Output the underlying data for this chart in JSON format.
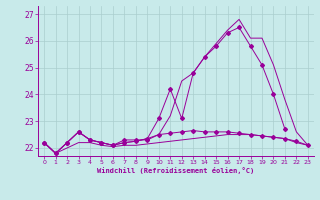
{
  "x": [
    0,
    1,
    2,
    3,
    4,
    5,
    6,
    7,
    8,
    9,
    10,
    11,
    12,
    13,
    14,
    15,
    16,
    17,
    18,
    19,
    20,
    21,
    22,
    23
  ],
  "line1": [
    22.2,
    21.8,
    22.0,
    22.2,
    22.2,
    22.1,
    22.05,
    22.1,
    22.1,
    22.15,
    22.2,
    22.25,
    22.3,
    22.35,
    22.4,
    22.45,
    22.5,
    22.5,
    22.5,
    22.45,
    22.4,
    22.35,
    22.2,
    22.1
  ],
  "line2": [
    22.2,
    21.8,
    22.2,
    22.6,
    22.3,
    22.2,
    22.1,
    22.3,
    22.3,
    22.3,
    22.5,
    22.55,
    22.6,
    22.65,
    22.6,
    22.6,
    22.6,
    22.55,
    22.5,
    22.45,
    22.4,
    22.35,
    22.25,
    22.1
  ],
  "line3": [
    22.2,
    21.8,
    22.2,
    22.6,
    22.3,
    22.2,
    22.1,
    22.2,
    22.25,
    22.35,
    23.1,
    24.2,
    23.1,
    24.8,
    25.4,
    25.8,
    26.3,
    26.5,
    25.8,
    25.1,
    24.0,
    22.7,
    null,
    null
  ],
  "line4": [
    22.2,
    21.8,
    22.2,
    22.6,
    22.3,
    22.2,
    22.1,
    22.2,
    22.25,
    22.35,
    22.5,
    23.2,
    24.5,
    24.8,
    25.4,
    25.9,
    26.4,
    26.8,
    26.1,
    26.1,
    25.1,
    23.8,
    22.6,
    22.1
  ],
  "ylim": [
    21.7,
    27.3
  ],
  "yticks": [
    22,
    23,
    24,
    25,
    26,
    27
  ],
  "xticks": [
    0,
    1,
    2,
    3,
    4,
    5,
    6,
    7,
    8,
    9,
    10,
    11,
    12,
    13,
    14,
    15,
    16,
    17,
    18,
    19,
    20,
    21,
    22,
    23
  ],
  "xlabel": "Windchill (Refroidissement éolien,°C)",
  "line_color": "#990099",
  "bg_color": "#c8eaea",
  "grid_color": "#aacece"
}
